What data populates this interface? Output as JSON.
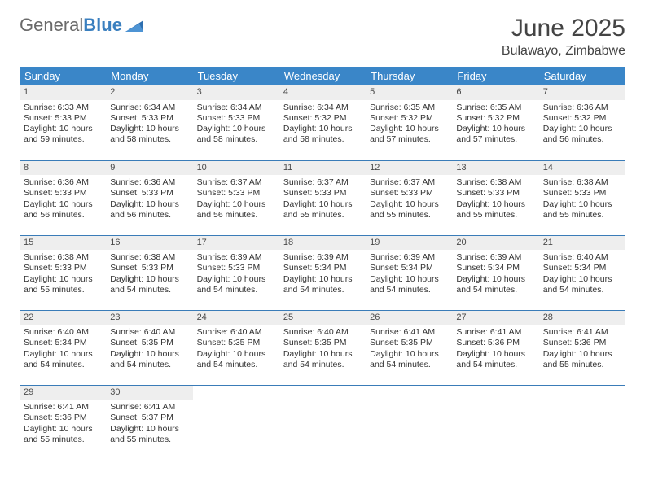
{
  "brand": {
    "part1": "General",
    "part2": "Blue"
  },
  "title": {
    "month": "June 2025",
    "location": "Bulawayo, Zimbabwe"
  },
  "colors": {
    "header_bg": "#3a86c8",
    "header_text": "#ffffff",
    "daynum_bg": "#eeeeee",
    "row_border": "#3a7cb8",
    "text": "#333333",
    "logo_gray": "#6a6a6a",
    "logo_blue": "#3a7fbf"
  },
  "weekdays": [
    "Sunday",
    "Monday",
    "Tuesday",
    "Wednesday",
    "Thursday",
    "Friday",
    "Saturday"
  ],
  "weeks": [
    [
      {
        "n": "1",
        "sunrise": "Sunrise: 6:33 AM",
        "sunset": "Sunset: 5:33 PM",
        "daylight": "Daylight: 10 hours and 59 minutes."
      },
      {
        "n": "2",
        "sunrise": "Sunrise: 6:34 AM",
        "sunset": "Sunset: 5:33 PM",
        "daylight": "Daylight: 10 hours and 58 minutes."
      },
      {
        "n": "3",
        "sunrise": "Sunrise: 6:34 AM",
        "sunset": "Sunset: 5:33 PM",
        "daylight": "Daylight: 10 hours and 58 minutes."
      },
      {
        "n": "4",
        "sunrise": "Sunrise: 6:34 AM",
        "sunset": "Sunset: 5:32 PM",
        "daylight": "Daylight: 10 hours and 58 minutes."
      },
      {
        "n": "5",
        "sunrise": "Sunrise: 6:35 AM",
        "sunset": "Sunset: 5:32 PM",
        "daylight": "Daylight: 10 hours and 57 minutes."
      },
      {
        "n": "6",
        "sunrise": "Sunrise: 6:35 AM",
        "sunset": "Sunset: 5:32 PM",
        "daylight": "Daylight: 10 hours and 57 minutes."
      },
      {
        "n": "7",
        "sunrise": "Sunrise: 6:36 AM",
        "sunset": "Sunset: 5:32 PM",
        "daylight": "Daylight: 10 hours and 56 minutes."
      }
    ],
    [
      {
        "n": "8",
        "sunrise": "Sunrise: 6:36 AM",
        "sunset": "Sunset: 5:33 PM",
        "daylight": "Daylight: 10 hours and 56 minutes."
      },
      {
        "n": "9",
        "sunrise": "Sunrise: 6:36 AM",
        "sunset": "Sunset: 5:33 PM",
        "daylight": "Daylight: 10 hours and 56 minutes."
      },
      {
        "n": "10",
        "sunrise": "Sunrise: 6:37 AM",
        "sunset": "Sunset: 5:33 PM",
        "daylight": "Daylight: 10 hours and 56 minutes."
      },
      {
        "n": "11",
        "sunrise": "Sunrise: 6:37 AM",
        "sunset": "Sunset: 5:33 PM",
        "daylight": "Daylight: 10 hours and 55 minutes."
      },
      {
        "n": "12",
        "sunrise": "Sunrise: 6:37 AM",
        "sunset": "Sunset: 5:33 PM",
        "daylight": "Daylight: 10 hours and 55 minutes."
      },
      {
        "n": "13",
        "sunrise": "Sunrise: 6:38 AM",
        "sunset": "Sunset: 5:33 PM",
        "daylight": "Daylight: 10 hours and 55 minutes."
      },
      {
        "n": "14",
        "sunrise": "Sunrise: 6:38 AM",
        "sunset": "Sunset: 5:33 PM",
        "daylight": "Daylight: 10 hours and 55 minutes."
      }
    ],
    [
      {
        "n": "15",
        "sunrise": "Sunrise: 6:38 AM",
        "sunset": "Sunset: 5:33 PM",
        "daylight": "Daylight: 10 hours and 55 minutes."
      },
      {
        "n": "16",
        "sunrise": "Sunrise: 6:38 AM",
        "sunset": "Sunset: 5:33 PM",
        "daylight": "Daylight: 10 hours and 54 minutes."
      },
      {
        "n": "17",
        "sunrise": "Sunrise: 6:39 AM",
        "sunset": "Sunset: 5:33 PM",
        "daylight": "Daylight: 10 hours and 54 minutes."
      },
      {
        "n": "18",
        "sunrise": "Sunrise: 6:39 AM",
        "sunset": "Sunset: 5:34 PM",
        "daylight": "Daylight: 10 hours and 54 minutes."
      },
      {
        "n": "19",
        "sunrise": "Sunrise: 6:39 AM",
        "sunset": "Sunset: 5:34 PM",
        "daylight": "Daylight: 10 hours and 54 minutes."
      },
      {
        "n": "20",
        "sunrise": "Sunrise: 6:39 AM",
        "sunset": "Sunset: 5:34 PM",
        "daylight": "Daylight: 10 hours and 54 minutes."
      },
      {
        "n": "21",
        "sunrise": "Sunrise: 6:40 AM",
        "sunset": "Sunset: 5:34 PM",
        "daylight": "Daylight: 10 hours and 54 minutes."
      }
    ],
    [
      {
        "n": "22",
        "sunrise": "Sunrise: 6:40 AM",
        "sunset": "Sunset: 5:34 PM",
        "daylight": "Daylight: 10 hours and 54 minutes."
      },
      {
        "n": "23",
        "sunrise": "Sunrise: 6:40 AM",
        "sunset": "Sunset: 5:35 PM",
        "daylight": "Daylight: 10 hours and 54 minutes."
      },
      {
        "n": "24",
        "sunrise": "Sunrise: 6:40 AM",
        "sunset": "Sunset: 5:35 PM",
        "daylight": "Daylight: 10 hours and 54 minutes."
      },
      {
        "n": "25",
        "sunrise": "Sunrise: 6:40 AM",
        "sunset": "Sunset: 5:35 PM",
        "daylight": "Daylight: 10 hours and 54 minutes."
      },
      {
        "n": "26",
        "sunrise": "Sunrise: 6:41 AM",
        "sunset": "Sunset: 5:35 PM",
        "daylight": "Daylight: 10 hours and 54 minutes."
      },
      {
        "n": "27",
        "sunrise": "Sunrise: 6:41 AM",
        "sunset": "Sunset: 5:36 PM",
        "daylight": "Daylight: 10 hours and 54 minutes."
      },
      {
        "n": "28",
        "sunrise": "Sunrise: 6:41 AM",
        "sunset": "Sunset: 5:36 PM",
        "daylight": "Daylight: 10 hours and 55 minutes."
      }
    ],
    [
      {
        "n": "29",
        "sunrise": "Sunrise: 6:41 AM",
        "sunset": "Sunset: 5:36 PM",
        "daylight": "Daylight: 10 hours and 55 minutes."
      },
      {
        "n": "30",
        "sunrise": "Sunrise: 6:41 AM",
        "sunset": "Sunset: 5:37 PM",
        "daylight": "Daylight: 10 hours and 55 minutes."
      },
      null,
      null,
      null,
      null,
      null
    ]
  ]
}
